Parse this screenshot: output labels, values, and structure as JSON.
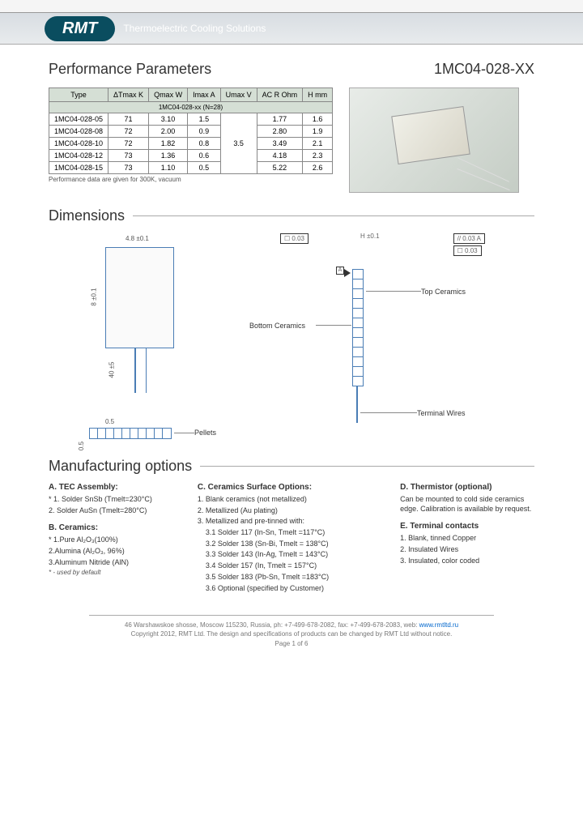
{
  "header": {
    "logo": "RMT",
    "tagline": "Thermoelectric Cooling Solutions"
  },
  "title_left": "Performance Parameters",
  "title_right": "1MC04-028-XX",
  "perf_table": {
    "headers": [
      "Type",
      "ΔTmax K",
      "Qmax W",
      "Imax A",
      "Umax V",
      "AC R Ohm",
      "H mm"
    ],
    "subheader": "1MC04-028-xx (N=28)",
    "rows": [
      [
        "1MC04-028-05",
        "71",
        "3.10",
        "1.5",
        "",
        "1.77",
        "1.6"
      ],
      [
        "1MC04-028-08",
        "72",
        "2.00",
        "0.9",
        "",
        "2.80",
        "1.9"
      ],
      [
        "1MC04-028-10",
        "72",
        "1.82",
        "0.8",
        "3.5",
        "3.49",
        "2.1"
      ],
      [
        "1MC04-028-12",
        "73",
        "1.36",
        "0.6",
        "",
        "4.18",
        "2.3"
      ],
      [
        "1MC04-028-15",
        "73",
        "1.10",
        "0.5",
        "",
        "5.22",
        "2.6"
      ]
    ],
    "footnote": "Performance data are given for 300K, vacuum"
  },
  "sections": {
    "dimensions": "Dimensions",
    "manufacturing": "Manufacturing options"
  },
  "dim_labels": {
    "width": "4.8 ±0.1",
    "height": "8 ±0.1",
    "lead": "40 ±5",
    "half": "0.5",
    "pellets": "Pellets",
    "h": "H ±0.1",
    "tol1": "☐ 0.03",
    "tol2": "// 0.03  A",
    "tol3": "☐ 0.03",
    "a": "A",
    "top_cer": "Top Ceramics",
    "bot_cer": "Bottom Ceramics",
    "term": "Terminal Wires"
  },
  "mfg": {
    "a": {
      "title": "A. TEC Assembly:",
      "items": [
        "* 1. Solder SnSb (Tmelt=230°C)",
        "2. Solder AuSn (Tmelt=280°C)"
      ]
    },
    "b": {
      "title": "B. Ceramics:",
      "items": [
        "* 1.Pure Al₂O₃(100%)",
        "2.Alumina (Al₂O₃, 96%)",
        "3.Aluminum Nitride (AlN)"
      ]
    },
    "c": {
      "title": "C. Ceramics Surface Options:",
      "items": [
        "1. Blank ceramics (not metallized)",
        "2. Metallized (Au plating)",
        "3. Metallized and pre-tinned with:"
      ],
      "sub": [
        "3.1 Solder 117 (In-Sn, Tmelt =117°C)",
        "3.2 Solder 138 (Sn-Bi, Tmelt = 138°C)",
        "3.3 Solder 143 (In-Ag, Tmelt = 143°C)",
        "3.4 Solder 157 (In, Tmelt = 157°C)",
        "3.5 Solder 183 (Pb-Sn, Tmelt =183°C)",
        "3.6 Optional (specified by Customer)"
      ]
    },
    "d": {
      "title": "D. Thermistor (optional)",
      "text": "Can be mounted to cold side ceramics edge. Calibration is available by request."
    },
    "e": {
      "title": "E. Terminal contacts",
      "items": [
        "1. Blank, tinned Copper",
        "2. Insulated Wires",
        "3. Insulated, color coded"
      ]
    },
    "default": "* - used by default"
  },
  "footer": {
    "addr": "46 Warshawskoe shosse, Moscow 115230, Russia, ph: +7-499-678-2082, fax: +7-499-678-2083, web: ",
    "link": "www.rmtltd.ru",
    "copy": "Copyright 2012, RMT Ltd. The design and specifications of products can be changed by RMT Ltd without notice.",
    "page": "Page 1 of 6"
  },
  "colors": {
    "header_bg": "#0a4d5f",
    "line_blue": "#4a7db5",
    "table_bg": "#d5dfd5"
  }
}
